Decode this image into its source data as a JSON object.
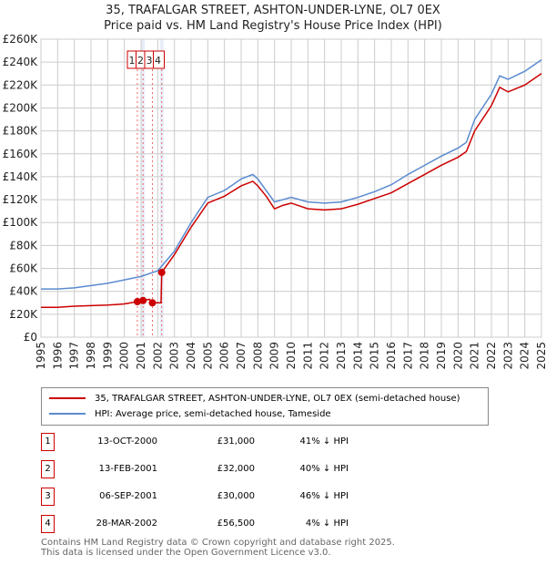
{
  "chart_data": {
    "type": "line",
    "title": "35, TRAFALGAR STREET, ASHTON-UNDER-LYNE, OL7 0EX",
    "subtitle": "Price paid vs. HM Land Registry's House Price Index (HPI)",
    "xlim": [
      1995,
      2025
    ],
    "ylim": [
      0,
      260000
    ],
    "x_ticks": [
      "1995",
      "1996",
      "1997",
      "1998",
      "1999",
      "2000",
      "2001",
      "2002",
      "2003",
      "2004",
      "2005",
      "2006",
      "2007",
      "2008",
      "2009",
      "2010",
      "2011",
      "2012",
      "2013",
      "2014",
      "2015",
      "2016",
      "2017",
      "2018",
      "2019",
      "2020",
      "2021",
      "2022",
      "2023",
      "2024",
      "2025"
    ],
    "y_ticks": [
      "£0",
      "£20K",
      "£40K",
      "£60K",
      "£80K",
      "£100K",
      "£120K",
      "£140K",
      "£160K",
      "£180K",
      "£200K",
      "£220K",
      "£240K",
      "£260K"
    ],
    "series": [
      {
        "name": "35, TRAFALGAR STREET, ASHTON-UNDER-LYNE, OL7 0EX (semi-detached house)",
        "color": "#cc0000",
        "x": [
          1995,
          1996,
          1997,
          1998,
          1999,
          2000,
          2000.78,
          2001.12,
          2001.5,
          2001.68,
          2002.2,
          2002.24,
          2003,
          2004,
          2005,
          2006,
          2007,
          2007.7,
          2008,
          2008.5,
          2009,
          2009.5,
          2010,
          2011,
          2012,
          2013,
          2014,
          2015,
          2016,
          2017,
          2018,
          2019,
          2020,
          2020.5,
          2021,
          2022,
          2022.5,
          2023,
          2024,
          2025
        ],
        "y": [
          26000,
          26000,
          27000,
          27500,
          28000,
          29000,
          31000,
          32000,
          33000,
          30000,
          30000,
          56500,
          72000,
          96000,
          117000,
          123000,
          132000,
          136000,
          132000,
          123000,
          112000,
          115000,
          117000,
          112000,
          111000,
          112000,
          116000,
          121000,
          126000,
          134000,
          142000,
          150000,
          157000,
          162000,
          180000,
          202000,
          218000,
          214000,
          220000,
          230000
        ]
      },
      {
        "name": "HPI: Average price, semi-detached house, Tameside",
        "color": "#5b8bd0",
        "x": [
          1995,
          1996,
          1997,
          1998,
          1999,
          2000,
          2001,
          2002,
          2003,
          2004,
          2005,
          2006,
          2007,
          2007.7,
          2008,
          2008.5,
          2009,
          2009.5,
          2010,
          2011,
          2012,
          2013,
          2014,
          2015,
          2016,
          2017,
          2018,
          2019,
          2020,
          2020.5,
          2021,
          2022,
          2022.5,
          2023,
          2024,
          2025
        ],
        "y": [
          42000,
          42000,
          43000,
          45000,
          47000,
          50000,
          53000,
          58000,
          75000,
          100000,
          122000,
          128000,
          138000,
          142000,
          138000,
          128000,
          118000,
          120000,
          122000,
          118000,
          117000,
          118000,
          122000,
          127000,
          133000,
          142000,
          150000,
          158000,
          165000,
          170000,
          190000,
          212000,
          228000,
          225000,
          232000,
          242000
        ]
      }
    ],
    "sales": [
      {
        "n": "1",
        "date": "13-OCT-2000",
        "x": 2000.78,
        "price": "£31,000",
        "value": 31000,
        "hpi": "41% ↓ HPI"
      },
      {
        "n": "2",
        "date": "13-FEB-2001",
        "x": 2001.12,
        "price": "£32,000",
        "value": 32000,
        "hpi": "40% ↓ HPI"
      },
      {
        "n": "3",
        "date": "06-SEP-2001",
        "x": 2001.68,
        "price": "£30,000",
        "value": 30000,
        "hpi": "46% ↓ HPI"
      },
      {
        "n": "4",
        "date": "28-MAR-2002",
        "x": 2002.24,
        "price": "£56,500",
        "value": 56500,
        "hpi": "4% ↓ HPI"
      }
    ]
  },
  "footer": {
    "line1": "Contains HM Land Registry data © Crown copyright and database right 2025.",
    "line2": "This data is licensed under the Open Government Licence v3.0."
  }
}
